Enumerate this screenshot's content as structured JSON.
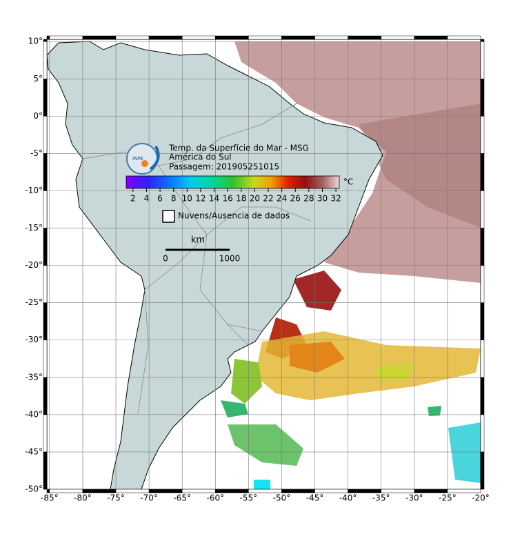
{
  "header": {
    "title": "Temp. da Superfície do Mar - MSG",
    "region": "América do Sul",
    "pass": "Passagem: 201905251015",
    "logo": "INPE"
  },
  "colorbar": {
    "unit": "°C",
    "lim": [
      1,
      32.5
    ],
    "ticks": [
      2,
      4,
      6,
      8,
      10,
      12,
      14,
      16,
      18,
      20,
      22,
      24,
      26,
      28,
      30,
      32
    ]
  },
  "legend": {
    "label": "Nuvens/Ausencia de dados"
  },
  "scale_bar": {
    "unit": "km",
    "labels": [
      "0",
      "1000"
    ]
  },
  "map": {
    "xlim": [
      -85.4,
      -20
    ],
    "ylim": [
      -50,
      10.3
    ],
    "xticks": [
      {
        "value": -85,
        "label": "-85°"
      },
      {
        "value": -80,
        "label": "-80°"
      },
      {
        "value": -75,
        "label": "-75°"
      },
      {
        "value": -70,
        "label": "-70°"
      },
      {
        "value": -65,
        "label": "-65°"
      },
      {
        "value": -60,
        "label": "-60°"
      },
      {
        "value": -55,
        "label": "-55°"
      },
      {
        "value": -50,
        "label": "-50°"
      },
      {
        "value": -45,
        "label": "-45°"
      },
      {
        "value": -40,
        "label": "-40°"
      },
      {
        "value": -35,
        "label": "-35°"
      },
      {
        "value": -30,
        "label": "-30°"
      },
      {
        "value": -25,
        "label": "-25°"
      },
      {
        "value": -20,
        "label": "-20°"
      }
    ],
    "yticks": [
      {
        "value": 10,
        "label": "10°"
      },
      {
        "value": 5,
        "label": "5°"
      },
      {
        "value": 0,
        "label": "0°"
      },
      {
        "value": -5,
        "label": "-5°"
      },
      {
        "value": -10,
        "label": "-10°"
      },
      {
        "value": -15,
        "label": "-15°"
      },
      {
        "value": -20,
        "label": "-20°"
      },
      {
        "value": -25,
        "label": "-25°"
      },
      {
        "value": -30,
        "label": "-30°"
      },
      {
        "value": -35,
        "label": "-35°"
      },
      {
        "value": -40,
        "label": "-40°"
      },
      {
        "value": -45,
        "label": "-45°"
      },
      {
        "value": -50,
        "label": "-50°"
      }
    ]
  }
}
